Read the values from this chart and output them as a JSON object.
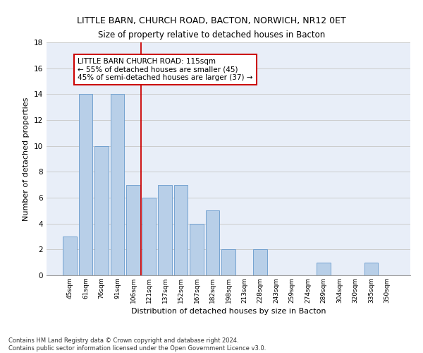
{
  "title": "LITTLE BARN, CHURCH ROAD, BACTON, NORWICH, NR12 0ET",
  "subtitle": "Size of property relative to detached houses in Bacton",
  "xlabel": "Distribution of detached houses by size in Bacton",
  "ylabel": "Number of detached properties",
  "categories": [
    "45sqm",
    "61sqm",
    "76sqm",
    "91sqm",
    "106sqm",
    "121sqm",
    "137sqm",
    "152sqm",
    "167sqm",
    "182sqm",
    "198sqm",
    "213sqm",
    "228sqm",
    "243sqm",
    "259sqm",
    "274sqm",
    "289sqm",
    "304sqm",
    "320sqm",
    "335sqm",
    "350sqm"
  ],
  "values": [
    3,
    14,
    10,
    14,
    7,
    6,
    7,
    7,
    4,
    5,
    2,
    0,
    2,
    0,
    0,
    0,
    1,
    0,
    0,
    1,
    0
  ],
  "bar_color": "#b8cfe8",
  "bar_edge_color": "#6699cc",
  "reference_line_x": 4.5,
  "reference_line_label": "LITTLE BARN CHURCH ROAD: 115sqm",
  "annotation_line1": "← 55% of detached houses are smaller (45)",
  "annotation_line2": "45% of semi-detached houses are larger (37) →",
  "annotation_box_color": "#ffffff",
  "annotation_box_edge_color": "#cc0000",
  "vline_color": "#cc0000",
  "ylim": [
    0,
    18
  ],
  "yticks": [
    0,
    2,
    4,
    6,
    8,
    10,
    12,
    14,
    16,
    18
  ],
  "grid_color": "#cccccc",
  "bg_color": "#e8eef8",
  "footnote1": "Contains HM Land Registry data © Crown copyright and database right 2024.",
  "footnote2": "Contains public sector information licensed under the Open Government Licence v3.0.",
  "title_fontsize": 9,
  "subtitle_fontsize": 8.5,
  "xlabel_fontsize": 8,
  "ylabel_fontsize": 8,
  "annot_fontsize": 7.5
}
